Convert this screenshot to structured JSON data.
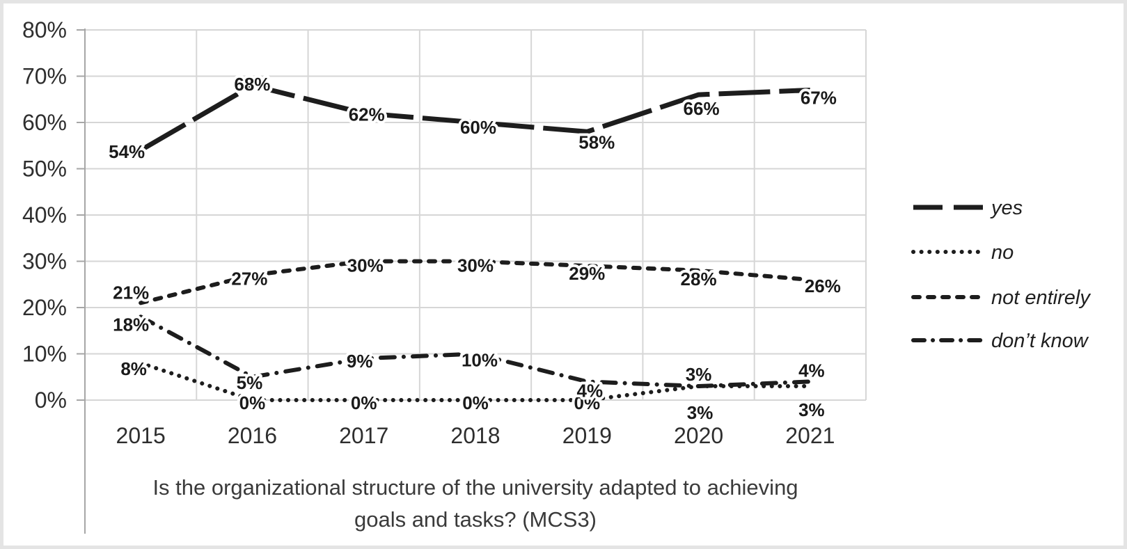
{
  "chart_data": {
    "type": "line",
    "title": "Is the organizational structure of the university adapted to achieving goals and tasks? (MCS3)",
    "title_lines": [
      "Is the organizational structure of the university adapted to achieving",
      "goals and tasks? (MCS3)"
    ],
    "categories": [
      "2015",
      "2016",
      "2017",
      "2018",
      "2019",
      "2020",
      "2021"
    ],
    "y_axis": {
      "min": 0,
      "max": 80,
      "step": 10,
      "ticks": [
        "0%",
        "10%",
        "20%",
        "30%",
        "40%",
        "50%",
        "60%",
        "70%",
        "80%"
      ]
    },
    "grid": true,
    "legend_position": "right",
    "series": [
      {
        "name": "yes",
        "style": "long-dash",
        "values": [
          54,
          68,
          62,
          60,
          58,
          66,
          67
        ],
        "labels": [
          "54%",
          "68%",
          "62%",
          "60%",
          "58%",
          "66%",
          "67%"
        ],
        "label_offsets": [
          [
            -20,
            2
          ],
          [
            0,
            -2
          ],
          [
            4,
            2
          ],
          [
            4,
            7
          ],
          [
            14,
            15
          ],
          [
            4,
            20
          ],
          [
            12,
            11
          ]
        ]
      },
      {
        "name": "no",
        "style": "dot",
        "values": [
          8,
          0,
          0,
          0,
          0,
          3,
          3
        ],
        "labels": [
          "8%",
          "0%",
          "0%",
          "0%",
          "0%",
          "3%",
          "3%"
        ],
        "label_offsets": [
          [
            -10,
            8
          ],
          [
            0,
            4
          ],
          [
            0,
            4
          ],
          [
            0,
            4
          ],
          [
            0,
            4
          ],
          [
            2,
            38
          ],
          [
            2,
            34
          ]
        ]
      },
      {
        "name": "not entirely",
        "style": "dash",
        "values": [
          21,
          27,
          30,
          30,
          29,
          28,
          26
        ],
        "labels": [
          "21%",
          "27%",
          "30%",
          "30%",
          "29%",
          "28%",
          "26%"
        ],
        "label_offsets": [
          [
            -14,
            -15
          ],
          [
            -4,
            5
          ],
          [
            2,
            6
          ],
          [
            0,
            6
          ],
          [
            0,
            11
          ],
          [
            0,
            12
          ],
          [
            18,
            9
          ]
        ]
      },
      {
        "name": "don’t know",
        "style": "dash-dot",
        "values": [
          18,
          5,
          9,
          10,
          4,
          3,
          4
        ],
        "labels": [
          "18%",
          "5%",
          "9%",
          "10%",
          "4%",
          "3%",
          "4%"
        ],
        "label_offsets": [
          [
            -14,
            11
          ],
          [
            -4,
            8
          ],
          [
            -6,
            4
          ],
          [
            6,
            9
          ],
          [
            4,
            13
          ],
          [
            0,
            -17
          ],
          [
            2,
            -16
          ]
        ]
      }
    ],
    "colors": {
      "line": "#1d1d1d",
      "grid": "#d6d6d6",
      "axis": "#a6a6a6",
      "data_label": "#1a1a1a",
      "axis_text": "#2e2e2e",
      "title_text": "#3a3a3a",
      "frame": "#e4e4e4"
    }
  }
}
